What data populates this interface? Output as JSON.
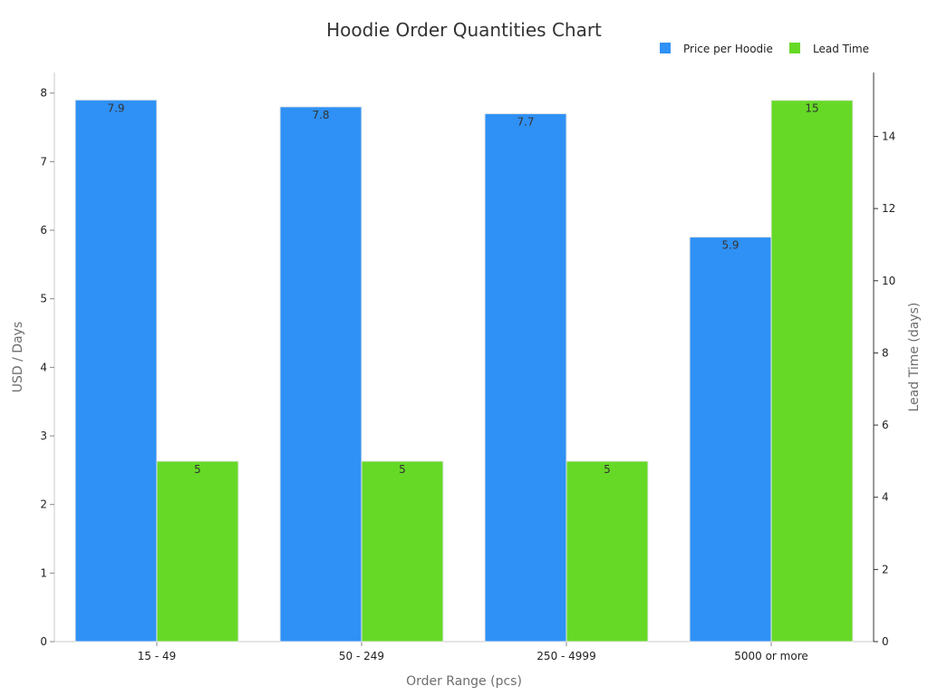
{
  "chart_data": {
    "type": "bar",
    "title": "Hoodie Order Quantities Chart",
    "xlabel": "Order Range (pcs)",
    "ylabel": "USD / Days",
    "y2label": "Lead Time (days)",
    "categories": [
      "15 - 49",
      "50 - 249",
      "250 - 4999",
      "5000 or more"
    ],
    "series": [
      {
        "name": "Price per Hoodie",
        "axis": "left",
        "color": "#2f91f5",
        "values": [
          7.9,
          7.8,
          7.7,
          5.9
        ],
        "labels": [
          "7.9",
          "7.8",
          "7.7",
          "5.9"
        ]
      },
      {
        "name": "Lead Time",
        "axis": "right",
        "color": "#66d927",
        "values": [
          5,
          5,
          5,
          15
        ],
        "labels": [
          "5",
          "5",
          "5",
          "15"
        ]
      }
    ],
    "ylim": [
      0,
      8.3
    ],
    "y2lim": [
      0,
      15.77
    ],
    "yticks": [
      0,
      1,
      2,
      3,
      4,
      5,
      6,
      7,
      8
    ],
    "y2ticks": [
      0,
      2,
      4,
      6,
      8,
      10,
      12,
      14
    ],
    "legend": "top-right",
    "grid": false
  }
}
